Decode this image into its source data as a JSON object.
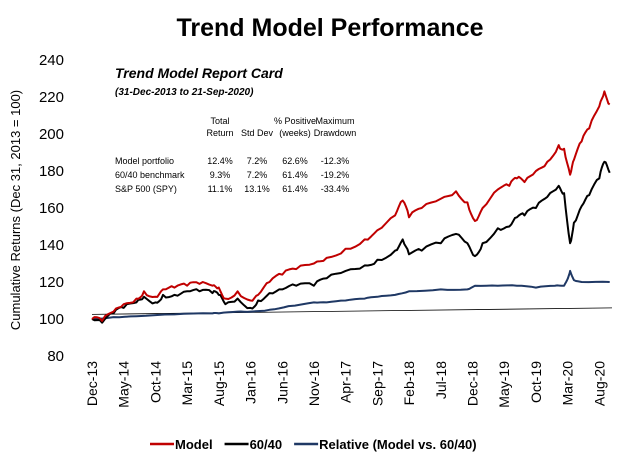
{
  "chart_data": {
    "type": "line",
    "title": "Trend Model Performance",
    "ylabel": "Cumulative Returns (Dec 31, 2013 = 100)",
    "xlabel": "",
    "ylim": [
      80,
      240
    ],
    "yticks": [
      80,
      100,
      120,
      140,
      160,
      180,
      200,
      220,
      240
    ],
    "xlim": [
      2013.917,
      2020.75
    ],
    "xticks": [
      {
        "label": "Dec-13",
        "x": 2013.917
      },
      {
        "label": "May-14",
        "x": 2014.333
      },
      {
        "label": "Oct-14",
        "x": 2014.75
      },
      {
        "label": "Mar-15",
        "x": 2015.167
      },
      {
        "label": "Aug-15",
        "x": 2015.583
      },
      {
        "label": "Jan-16",
        "x": 2016.0
      },
      {
        "label": "Jun-16",
        "x": 2016.417
      },
      {
        "label": "Nov-16",
        "x": 2016.833
      },
      {
        "label": "Apr-17",
        "x": 2017.25
      },
      {
        "label": "Sep-17",
        "x": 2017.667
      },
      {
        "label": "Feb-18",
        "x": 2018.083
      },
      {
        "label": "Jul-18",
        "x": 2018.5
      },
      {
        "label": "Dec-18",
        "x": 2018.917
      },
      {
        "label": "May-19",
        "x": 2019.333
      },
      {
        "label": "Oct-19",
        "x": 2019.75
      },
      {
        "label": "Mar-20",
        "x": 2020.167
      },
      {
        "label": "Aug-20",
        "x": 2020.583
      }
    ],
    "grid": false,
    "legend_position": "bottom",
    "series": [
      {
        "name": "Model",
        "color": "#c00000",
        "points": [
          [
            2013.917,
            100
          ],
          [
            2014.05,
            99
          ],
          [
            2014.2,
            104
          ],
          [
            2014.333,
            108
          ],
          [
            2014.5,
            111
          ],
          [
            2014.6,
            115
          ],
          [
            2014.75,
            112
          ],
          [
            2014.85,
            116
          ],
          [
            2015.0,
            117
          ],
          [
            2015.167,
            118
          ],
          [
            2015.33,
            119
          ],
          [
            2015.5,
            118
          ],
          [
            2015.583,
            117
          ],
          [
            2015.67,
            111
          ],
          [
            2015.83,
            115
          ],
          [
            2016.0,
            110
          ],
          [
            2016.1,
            113
          ],
          [
            2016.25,
            120
          ],
          [
            2016.417,
            124
          ],
          [
            2016.6,
            127
          ],
          [
            2016.833,
            130
          ],
          [
            2017.0,
            133
          ],
          [
            2017.25,
            138
          ],
          [
            2017.5,
            143
          ],
          [
            2017.667,
            148
          ],
          [
            2017.9,
            156
          ],
          [
            2018.0,
            164
          ],
          [
            2018.083,
            155
          ],
          [
            2018.25,
            160
          ],
          [
            2018.5,
            165
          ],
          [
            2018.7,
            169
          ],
          [
            2018.85,
            163
          ],
          [
            2018.95,
            153
          ],
          [
            2019.05,
            160
          ],
          [
            2019.25,
            170
          ],
          [
            2019.4,
            172
          ],
          [
            2019.5,
            176
          ],
          [
            2019.6,
            174
          ],
          [
            2019.75,
            180
          ],
          [
            2019.9,
            185
          ],
          [
            2020.05,
            194
          ],
          [
            2020.12,
            192
          ],
          [
            2020.2,
            178
          ],
          [
            2020.25,
            186
          ],
          [
            2020.35,
            196
          ],
          [
            2020.45,
            203
          ],
          [
            2020.583,
            215
          ],
          [
            2020.65,
            223
          ],
          [
            2020.72,
            216
          ]
        ]
      },
      {
        "name": "60/40",
        "color": "#000000",
        "points": [
          [
            2013.917,
            100
          ],
          [
            2014.05,
            98
          ],
          [
            2014.2,
            103
          ],
          [
            2014.333,
            106
          ],
          [
            2014.5,
            109
          ],
          [
            2014.6,
            112
          ],
          [
            2014.75,
            109
          ],
          [
            2014.85,
            113
          ],
          [
            2015.0,
            113
          ],
          [
            2015.167,
            115
          ],
          [
            2015.33,
            115
          ],
          [
            2015.5,
            114
          ],
          [
            2015.583,
            113
          ],
          [
            2015.67,
            108
          ],
          [
            2015.83,
            111
          ],
          [
            2016.0,
            106
          ],
          [
            2016.1,
            110
          ],
          [
            2016.25,
            114
          ],
          [
            2016.417,
            116
          ],
          [
            2016.6,
            118
          ],
          [
            2016.833,
            118
          ],
          [
            2017.0,
            122
          ],
          [
            2017.25,
            126
          ],
          [
            2017.5,
            129
          ],
          [
            2017.667,
            132
          ],
          [
            2017.9,
            137
          ],
          [
            2018.0,
            143
          ],
          [
            2018.083,
            135
          ],
          [
            2018.25,
            137
          ],
          [
            2018.5,
            141
          ],
          [
            2018.7,
            146
          ],
          [
            2018.85,
            141
          ],
          [
            2018.95,
            134
          ],
          [
            2019.05,
            141
          ],
          [
            2019.25,
            149
          ],
          [
            2019.4,
            150
          ],
          [
            2019.5,
            155
          ],
          [
            2019.6,
            156
          ],
          [
            2019.75,
            160
          ],
          [
            2019.9,
            166
          ],
          [
            2020.05,
            172
          ],
          [
            2020.12,
            168
          ],
          [
            2020.2,
            141
          ],
          [
            2020.25,
            152
          ],
          [
            2020.35,
            161
          ],
          [
            2020.45,
            167
          ],
          [
            2020.583,
            176
          ],
          [
            2020.65,
            185
          ],
          [
            2020.72,
            179
          ]
        ]
      },
      {
        "name": "Relative (Model vs. 60/40)",
        "color": "#1f3864",
        "points": [
          [
            2013.917,
            100
          ],
          [
            2014.2,
            101
          ],
          [
            2014.5,
            101.5
          ],
          [
            2015.0,
            102.5
          ],
          [
            2015.5,
            103
          ],
          [
            2015.583,
            103
          ],
          [
            2015.83,
            104
          ],
          [
            2016.0,
            104
          ],
          [
            2016.25,
            105
          ],
          [
            2016.5,
            107
          ],
          [
            2016.833,
            109
          ],
          [
            2017.0,
            109
          ],
          [
            2017.25,
            110
          ],
          [
            2017.5,
            111
          ],
          [
            2017.667,
            112
          ],
          [
            2017.9,
            113
          ],
          [
            2018.083,
            115
          ],
          [
            2018.5,
            116
          ],
          [
            2018.85,
            116
          ],
          [
            2018.95,
            118
          ],
          [
            2019.25,
            118
          ],
          [
            2019.5,
            118
          ],
          [
            2019.75,
            117
          ],
          [
            2020.0,
            118
          ],
          [
            2020.12,
            118
          ],
          [
            2020.17,
            122
          ],
          [
            2020.2,
            126
          ],
          [
            2020.25,
            121
          ],
          [
            2020.35,
            120
          ],
          [
            2020.72,
            120
          ]
        ]
      }
    ],
    "trendline": {
      "from": [
        2013.917,
        102.5
      ],
      "to": [
        2020.75,
        106
      ]
    },
    "legend": [
      {
        "label": "Model",
        "color": "#c00000"
      },
      {
        "label": "60/40",
        "color": "#000000"
      },
      {
        "label": "Relative (Model vs. 60/40)",
        "color": "#1f3864"
      }
    ],
    "report_card": {
      "title": "Trend Model Report Card",
      "subtitle": "(31-Dec-2013 to 21-Sep-2020)",
      "header_row1": [
        "",
        "Total",
        "",
        "% Positive",
        "Maximum"
      ],
      "header_row2": [
        "",
        "Return",
        "Std Dev",
        "(weeks)",
        "Drawdown"
      ],
      "rows": [
        [
          "Model portfolio",
          "12.4%",
          "7.2%",
          "62.6%",
          "-12.3%"
        ],
        [
          "60/40 benchmark",
          "9.3%",
          "7.2%",
          "61.4%",
          "-19.2%"
        ],
        [
          "S&P 500 (SPY)",
          "11.1%",
          "13.1%",
          "61.4%",
          "-33.4%"
        ]
      ]
    }
  }
}
